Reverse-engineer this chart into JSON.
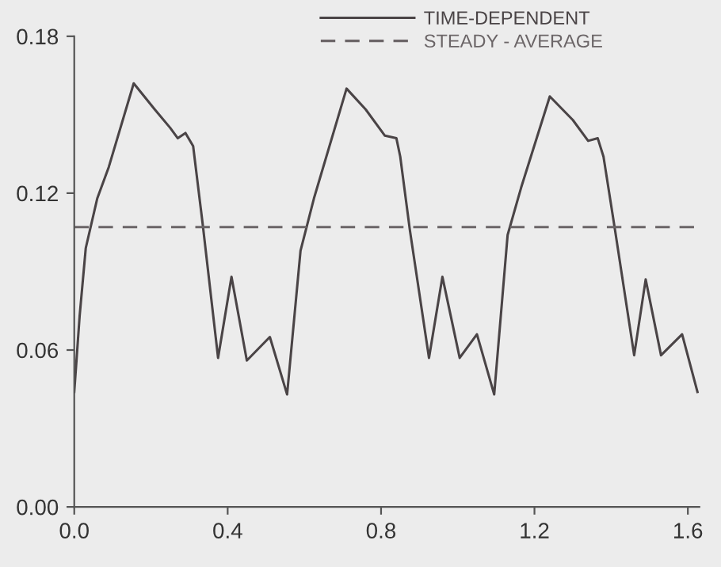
{
  "chart_data": {
    "type": "line",
    "series": [
      {
        "name": "TIME-DEPENDENT",
        "color": "#4a4446",
        "line_style": "solid",
        "x": [
          0.0,
          0.014,
          0.03,
          0.06,
          0.09,
          0.155,
          0.21,
          0.25,
          0.27,
          0.29,
          0.31,
          0.335,
          0.375,
          0.41,
          0.45,
          0.51,
          0.555,
          0.59,
          0.625,
          0.71,
          0.76,
          0.81,
          0.84,
          0.85,
          0.875,
          0.925,
          0.96,
          1.005,
          1.05,
          1.095,
          1.13,
          1.165,
          1.24,
          1.3,
          1.34,
          1.365,
          1.38,
          1.41,
          1.46,
          1.49,
          1.53,
          1.585,
          1.625
        ],
        "values": [
          0.044,
          0.073,
          0.099,
          0.118,
          0.13,
          0.162,
          0.152,
          0.145,
          0.141,
          0.143,
          0.138,
          0.108,
          0.057,
          0.088,
          0.056,
          0.065,
          0.043,
          0.098,
          0.118,
          0.16,
          0.152,
          0.142,
          0.141,
          0.134,
          0.106,
          0.057,
          0.088,
          0.057,
          0.066,
          0.043,
          0.104,
          0.122,
          0.157,
          0.148,
          0.14,
          0.141,
          0.134,
          0.106,
          0.058,
          0.087,
          0.058,
          0.066,
          0.044
        ]
      },
      {
        "name": "STEADY - AVERAGE",
        "color": "#6b6567",
        "line_style": "dashed",
        "x": [
          0.0,
          1.625
        ],
        "values": [
          0.107,
          0.107
        ]
      }
    ],
    "xlim": [
      0,
      1.63
    ],
    "ylim": [
      0,
      0.18
    ],
    "xticks": [
      {
        "value": 0,
        "label": "0.0"
      },
      0.4,
      0.8,
      1.2,
      1.6
    ],
    "yticks": [
      {
        "value": 0,
        "label": "0.00"
      },
      0.06,
      0.12,
      0.18
    ],
    "legend": "top",
    "marker": "none",
    "grid": false
  }
}
